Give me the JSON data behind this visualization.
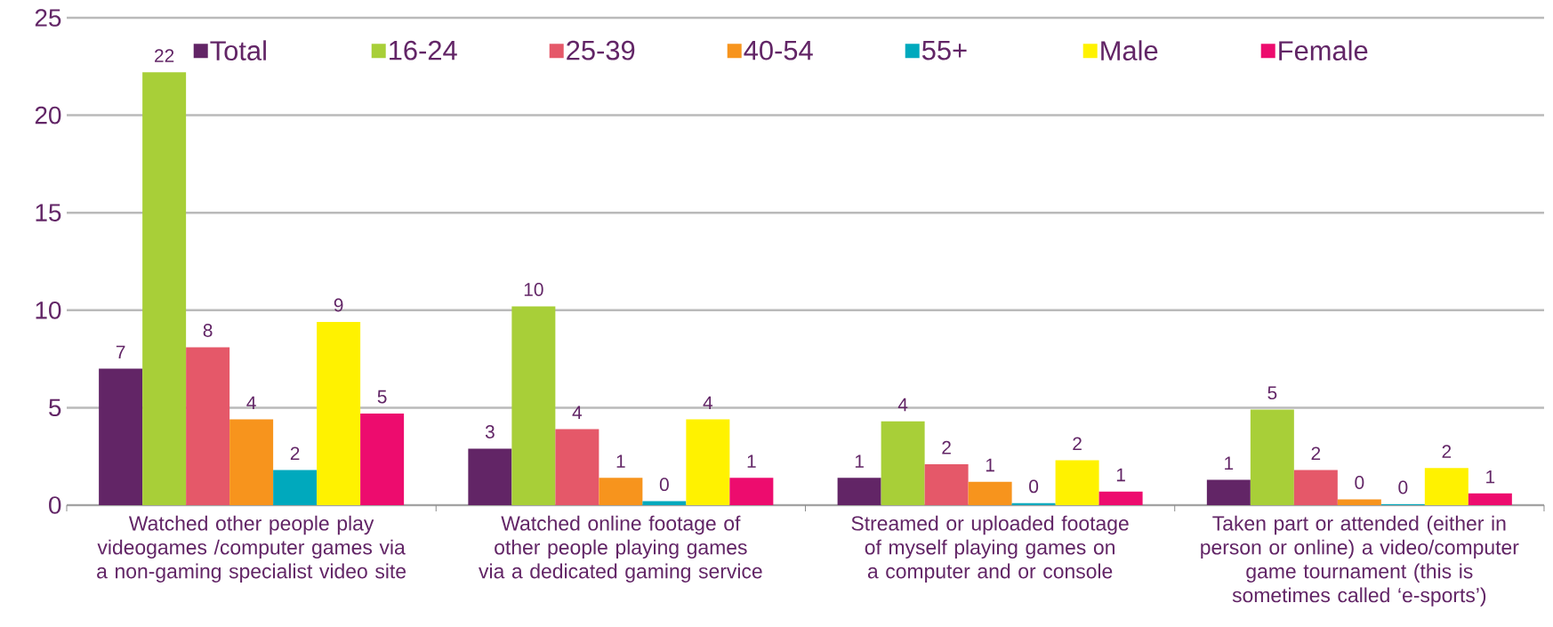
{
  "chart_data": {
    "type": "bar",
    "categories": [
      "Watched other people play videogames /computer games via a non-gaming specialist video site",
      "Watched online footage of other people playing games via a dedicated gaming service",
      "Streamed or uploaded footage of myself playing games on a computer and or console",
      "Taken part or attended (either in person or online) a video/computer game tournament (this is sometimes called ‘e-sports’)"
    ],
    "series": [
      {
        "name": "Total",
        "color": "#622566",
        "values": [
          7.0,
          2.9,
          1.4,
          1.3
        ],
        "value_labels": [
          "7",
          "3",
          "1",
          "1"
        ]
      },
      {
        "name": "16-24",
        "color": "#a8cf38",
        "values": [
          22.2,
          10.2,
          4.3,
          4.9
        ],
        "value_labels": [
          "22",
          "10",
          "4",
          "5"
        ]
      },
      {
        "name": "25-39",
        "color": "#e55869",
        "values": [
          8.1,
          3.9,
          2.1,
          1.8
        ],
        "value_labels": [
          "8",
          "4",
          "2",
          "2"
        ]
      },
      {
        "name": "40-54",
        "color": "#f7941d",
        "values": [
          4.4,
          1.4,
          1.2,
          0.3
        ],
        "value_labels": [
          "4",
          "1",
          "1",
          "0"
        ]
      },
      {
        "name": "55+",
        "color": "#00a9bd",
        "values": [
          1.8,
          0.2,
          0.1,
          0.05
        ],
        "value_labels": [
          "2",
          "0",
          "0",
          "0"
        ]
      },
      {
        "name": "Male",
        "color": "#fff200",
        "values": [
          9.4,
          4.4,
          2.3,
          1.9
        ],
        "value_labels": [
          "9",
          "4",
          "2",
          "2"
        ]
      },
      {
        "name": "Female",
        "color": "#ed0c6e",
        "values": [
          4.7,
          1.4,
          0.7,
          0.6
        ],
        "value_labels": [
          "5",
          "1",
          "1",
          "1"
        ]
      }
    ],
    "ylim": [
      0,
      25
    ],
    "yticks": [
      0,
      5,
      10,
      15,
      20,
      25
    ],
    "grid": "y",
    "legend": "top"
  }
}
